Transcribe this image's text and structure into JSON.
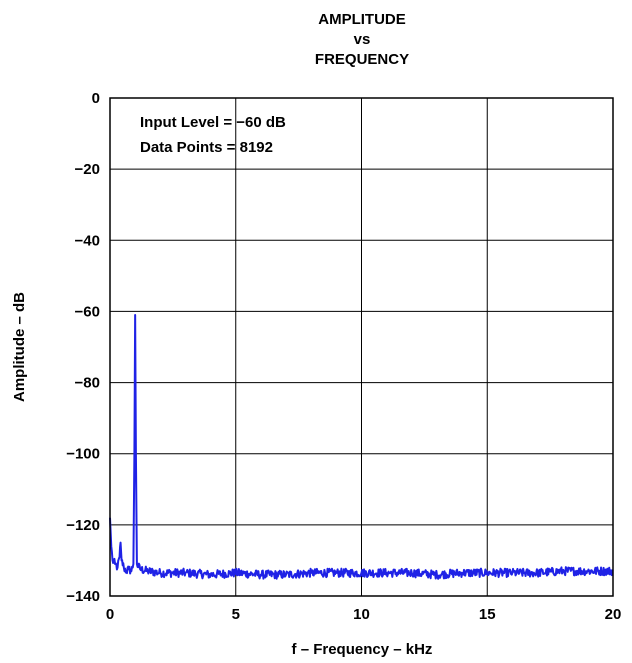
{
  "chart_data": {
    "type": "line",
    "title_lines": [
      "AMPLITUDE",
      "vs",
      "FREQUENCY"
    ],
    "xlabel": "f – Frequency – kHz",
    "ylabel": "Amplitude – dB",
    "xlim": [
      0,
      20
    ],
    "ylim": [
      -140,
      0
    ],
    "x_ticks": [
      0,
      5,
      10,
      15,
      20
    ],
    "x_tick_labels": [
      "0",
      "5",
      "10",
      "15",
      "20"
    ],
    "y_ticks": [
      0,
      -20,
      -40,
      -60,
      -80,
      -100,
      -120,
      -140
    ],
    "y_tick_labels": [
      "0",
      "−20",
      "−40",
      "−60",
      "−80",
      "−100",
      "−120",
      "−140"
    ],
    "grid": true,
    "annotations": [
      "Input Level = −60 dB",
      "Data Points = 8192"
    ],
    "series_color": "#1f22e6",
    "series": [
      {
        "points": [
          [
            0.0,
            -118
          ],
          [
            0.05,
            -126
          ],
          [
            0.1,
            -130
          ],
          [
            0.2,
            -131
          ],
          [
            0.3,
            -132
          ],
          [
            0.38,
            -129
          ],
          [
            0.42,
            -125
          ],
          [
            0.46,
            -130
          ],
          [
            0.55,
            -132
          ],
          [
            0.65,
            -133
          ],
          [
            0.75,
            -132.5
          ],
          [
            0.85,
            -133
          ],
          [
            0.93,
            -131
          ],
          [
            0.97,
            -100
          ],
          [
            1.0,
            -61
          ],
          [
            1.03,
            -100
          ],
          [
            1.07,
            -131
          ],
          [
            1.2,
            -132.5
          ],
          [
            1.5,
            -133
          ],
          [
            2.0,
            -133.5
          ],
          [
            3.0,
            -133.5
          ],
          [
            4.0,
            -134
          ],
          [
            5.0,
            -133.5
          ],
          [
            6.0,
            -134
          ],
          [
            7.0,
            -134
          ],
          [
            8.0,
            -133.5
          ],
          [
            9.0,
            -133.5
          ],
          [
            10.0,
            -133.5
          ],
          [
            11.0,
            -133.5
          ],
          [
            12.0,
            -133.5
          ],
          [
            13.0,
            -134
          ],
          [
            14.0,
            -133.5
          ],
          [
            15.0,
            -133.5
          ],
          [
            16.0,
            -133.5
          ],
          [
            17.0,
            -133.5
          ],
          [
            18.0,
            -133
          ],
          [
            19.0,
            -133
          ],
          [
            20.0,
            -133
          ]
        ]
      }
    ]
  }
}
